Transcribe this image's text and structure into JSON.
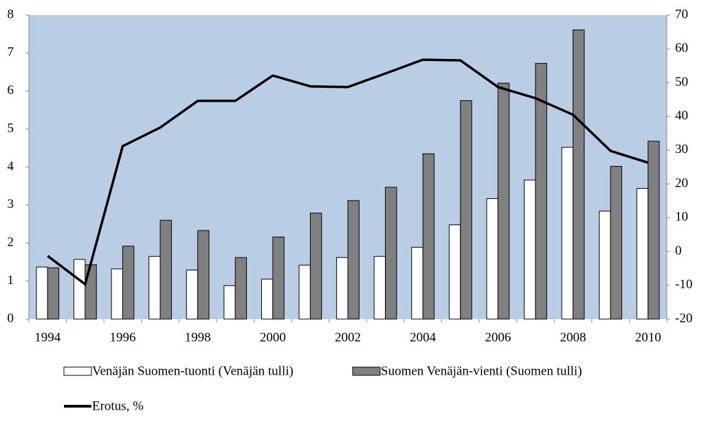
{
  "chart_data": {
    "type": "bar",
    "categories": [
      "1994",
      null,
      "1996",
      null,
      "1998",
      null,
      "2000",
      null,
      "2002",
      null,
      "2004",
      null,
      "2006",
      null,
      "2008",
      null,
      "2010"
    ],
    "series": [
      {
        "name": "Venäjän Suomen-tuonti (Venäjän tulli)",
        "color": "#ffffff",
        "values": [
          1.37,
          1.57,
          1.32,
          1.65,
          1.29,
          0.88,
          1.05,
          1.42,
          1.62,
          1.65,
          1.89,
          2.48,
          3.17,
          3.66,
          4.52,
          2.84,
          3.44
        ]
      },
      {
        "name": "Suomen Venäjän-vienti (Suomen tulli)",
        "color": "#808080",
        "values": [
          1.35,
          1.43,
          1.92,
          2.6,
          2.33,
          1.62,
          2.16,
          2.79,
          3.12,
          3.47,
          4.35,
          5.75,
          6.21,
          6.73,
          7.61,
          4.02,
          4.68
        ]
      },
      {
        "name": "Erotus, %",
        "color": "#000000",
        "type": "line",
        "axis": "y2",
        "values": [
          -1.3,
          -9.7,
          31.2,
          36.7,
          44.6,
          44.6,
          52.1,
          48.9,
          48.7,
          52.7,
          56.8,
          56.6,
          48.7,
          45.4,
          40.5,
          29.8,
          26.3
        ]
      }
    ],
    "ylim": [
      0,
      8
    ],
    "yticks": [
      0,
      1,
      2,
      3,
      4,
      5,
      6,
      7,
      8
    ],
    "y2lim": [
      -20,
      70
    ],
    "y2ticks": [
      -20,
      -10,
      0,
      10,
      20,
      30,
      40,
      50,
      60,
      70
    ],
    "grid": false,
    "plot_background": "#b9cde5"
  }
}
